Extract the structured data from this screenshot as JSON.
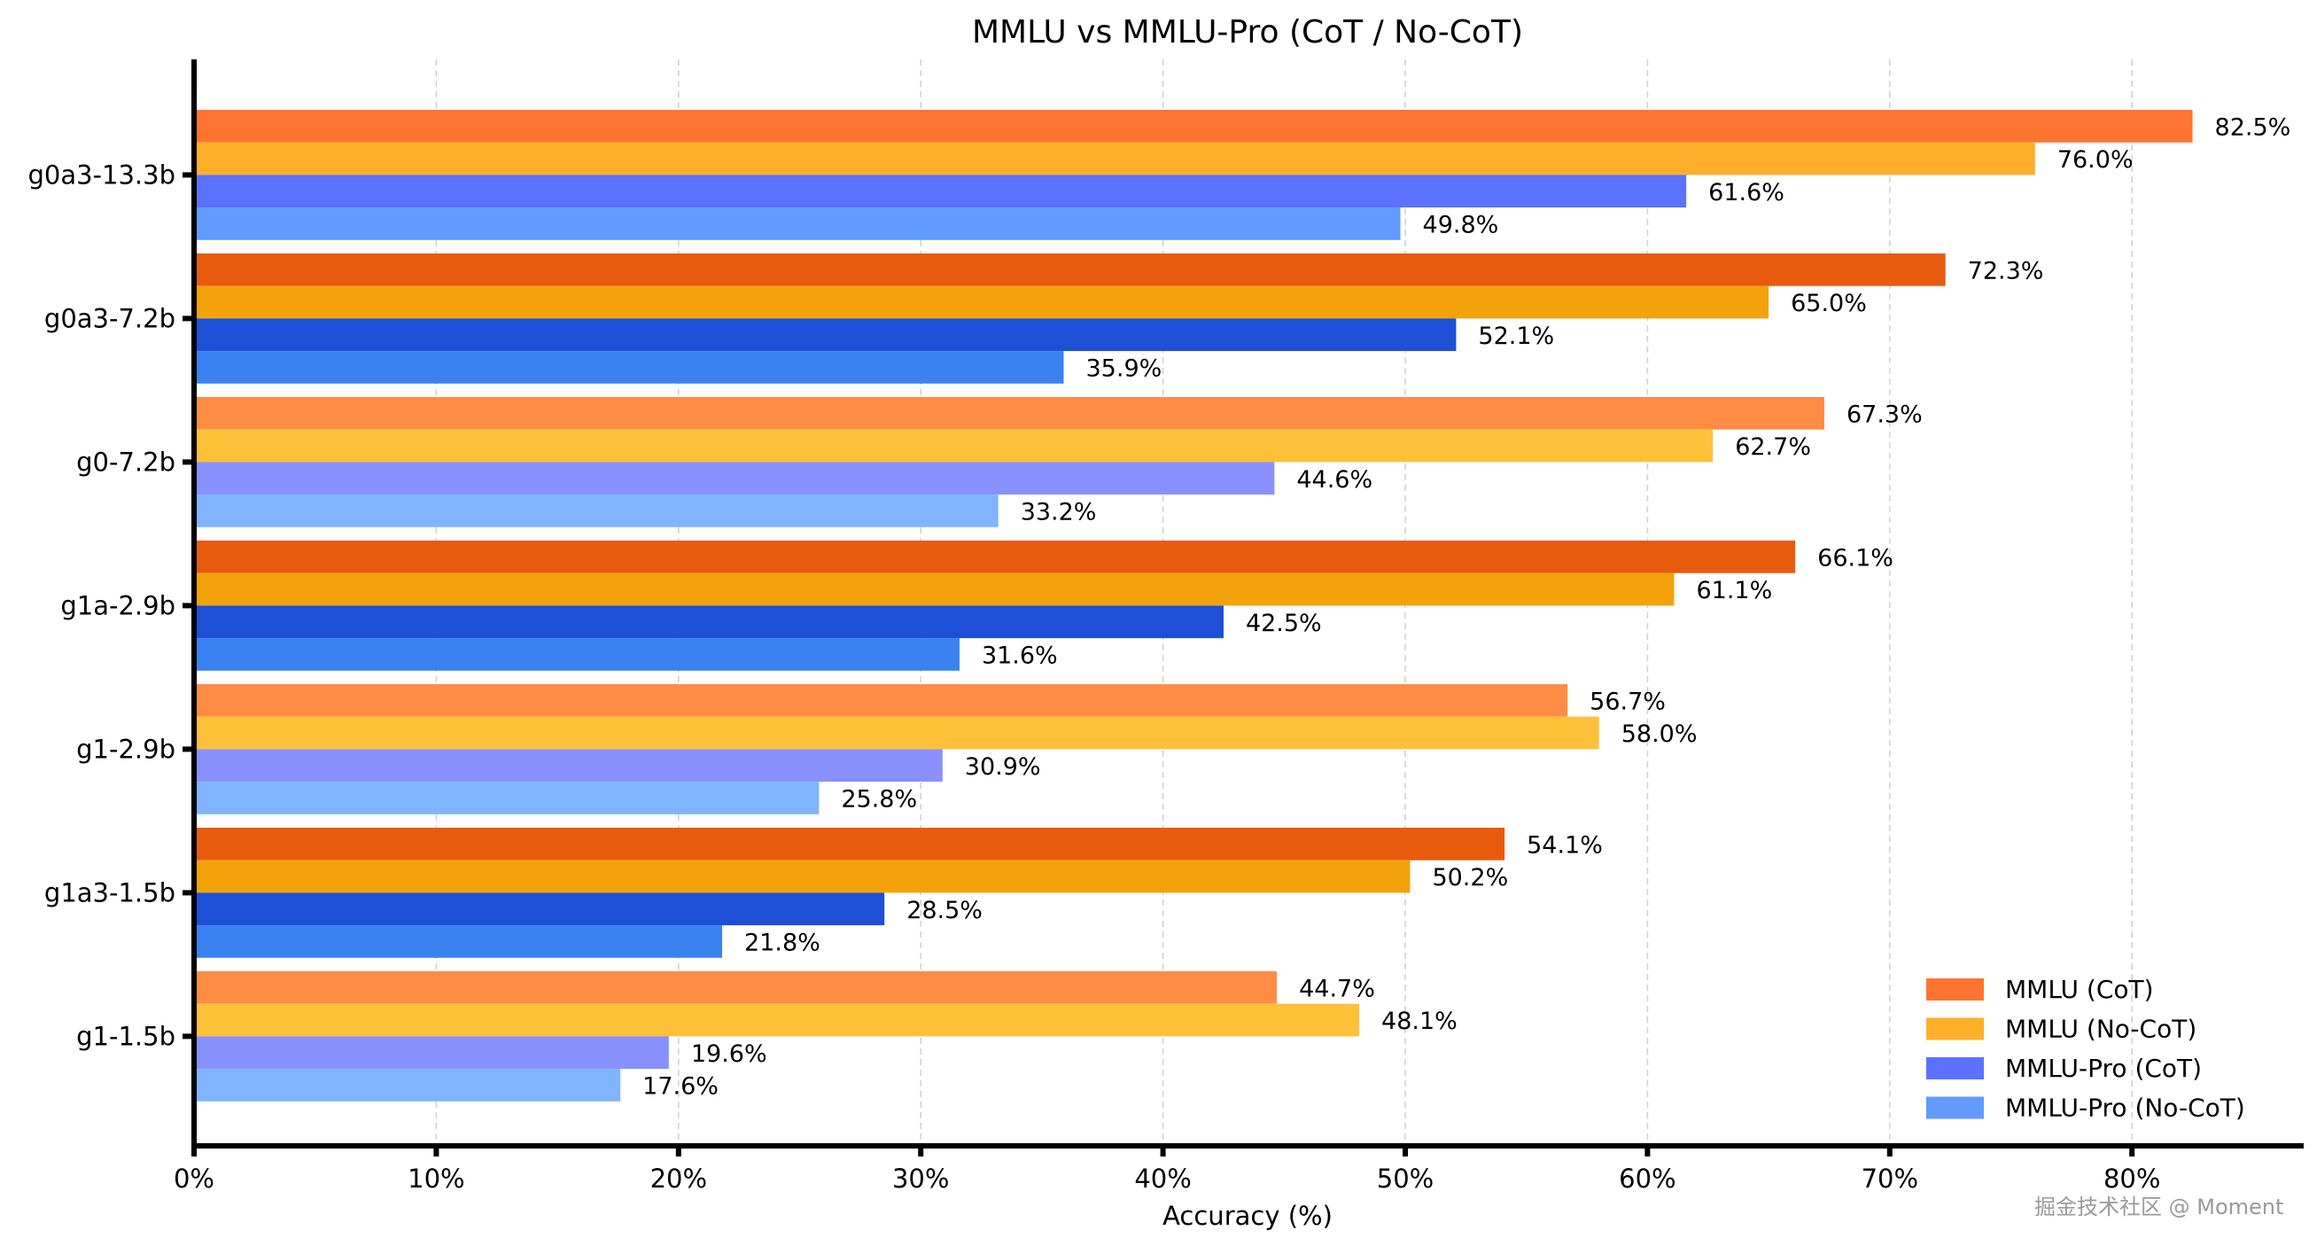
{
  "chart_data": {
    "type": "bar",
    "orientation": "horizontal",
    "title": "MMLU vs MMLU-Pro (CoT / No-CoT)",
    "xlabel": "Accuracy (%)",
    "ylabel": "",
    "xlim": [
      0,
      87
    ],
    "x_ticks": [
      "0%",
      "10%",
      "20%",
      "30%",
      "40%",
      "50%",
      "60%",
      "70%",
      "80%"
    ],
    "grid": "vertical dashed",
    "legend_position": "bottom-right",
    "categories": [
      "g0a3-13.3b",
      "g0a3-7.2b",
      "g0-7.2b",
      "g1a-2.9b",
      "g1-2.9b",
      "g1a3-1.5b",
      "g1-1.5b"
    ],
    "series": [
      {
        "name": "MMLU (CoT)",
        "color": "#FF7430",
        "values": [
          82.5,
          72.3,
          67.3,
          66.1,
          56.7,
          54.1,
          44.7
        ]
      },
      {
        "name": "MMLU (No-CoT)",
        "color": "#FFAF2A",
        "values": [
          76.0,
          65.0,
          62.7,
          61.1,
          58.0,
          50.2,
          48.1
        ]
      },
      {
        "name": "MMLU-Pro (CoT)",
        "color": "#5B71FF",
        "values": [
          61.6,
          52.1,
          44.6,
          42.5,
          30.9,
          28.5,
          19.6
        ]
      },
      {
        "name": "MMLU-Pro (No-CoT)",
        "color": "#619BFF",
        "values": [
          49.8,
          35.9,
          33.2,
          31.6,
          25.8,
          21.8,
          17.6
        ]
      }
    ],
    "category_palettes": {
      "base": [
        "#FF7430",
        "#FFAF2A",
        "#5B71FF",
        "#619BFF"
      ],
      "dark": [
        "#E85A0E",
        "#F4A20C",
        "#1D4FD7",
        "#3B82F1"
      ],
      "light": [
        "#FF8C45",
        "#FFC03A",
        "#8891FF",
        "#80B4FF"
      ]
    },
    "category_palette_order": [
      "base",
      "dark",
      "light",
      "dark",
      "light",
      "dark",
      "light"
    ],
    "value_label_suffix": "%"
  },
  "watermark": "掘金技术社区 @ Moment"
}
